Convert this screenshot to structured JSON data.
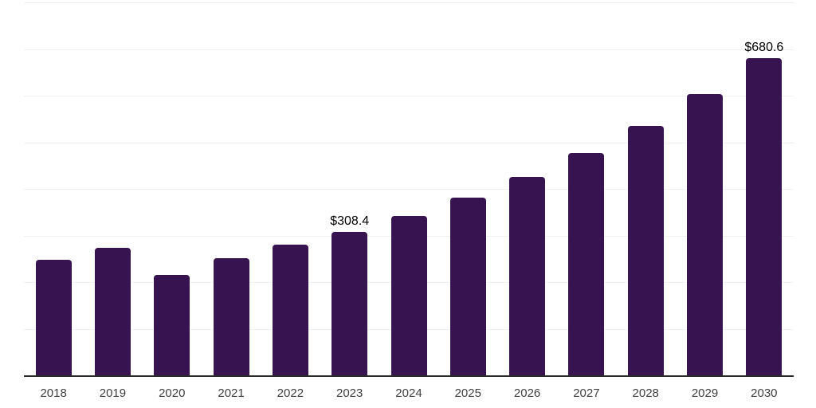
{
  "chart_data": {
    "type": "bar",
    "title": "",
    "xlabel": "",
    "ylabel": "",
    "categories": [
      "2018",
      "2019",
      "2020",
      "2021",
      "2022",
      "2023",
      "2024",
      "2025",
      "2026",
      "2027",
      "2028",
      "2029",
      "2030"
    ],
    "values": [
      248,
      273,
      215,
      252,
      280,
      308.4,
      342,
      381,
      425,
      477,
      535,
      603,
      680.6
    ],
    "data_labels": {
      "2023": "$308.4",
      "2030": "$680.6"
    },
    "value_prefix": "$",
    "ylim": [
      0,
      800
    ],
    "gridline_step": 100,
    "grid": "horizontal-only",
    "y_axis_labels_visible": false,
    "legend_position": "none",
    "bar_color": "#37134F",
    "gridline_color": "#f1f1f1",
    "axis_line_color": "#2b2b2b",
    "tick_label_color": "#404040",
    "data_label_color": "#000000"
  }
}
